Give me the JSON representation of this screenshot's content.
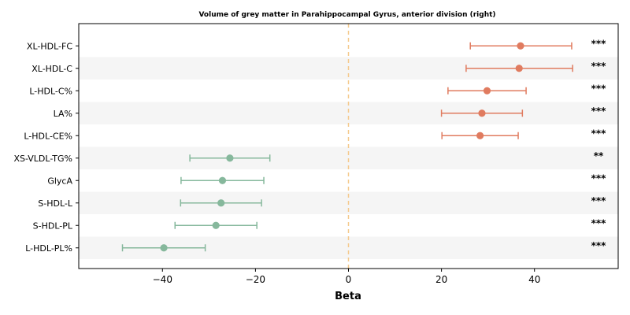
{
  "chart_data": {
    "type": "forest",
    "title": "Volume of grey matter in Parahippocampal Gyrus, anterior division (right)",
    "xlabel": "Beta",
    "xlim": [
      -58,
      58
    ],
    "xticks": [
      -40,
      -20,
      0,
      20,
      40
    ],
    "xtick_labels": [
      "−40",
      "−20",
      "0",
      "20",
      "40"
    ],
    "reference_line": 0,
    "colors": {
      "positive": "#e07b5f",
      "negative": "#86b89c",
      "reference": "#f5c98c",
      "band": "#f5f5f5"
    },
    "rows": [
      {
        "label": "XL-HDL-FC",
        "beta": 37.0,
        "lower": 26.2,
        "upper": 48.0,
        "sig": "***"
      },
      {
        "label": "XL-HDL-C",
        "beta": 36.7,
        "lower": 25.3,
        "upper": 48.2,
        "sig": "***"
      },
      {
        "label": "L-HDL-C%",
        "beta": 29.8,
        "lower": 21.4,
        "upper": 38.2,
        "sig": "***"
      },
      {
        "label": "LA%",
        "beta": 28.7,
        "lower": 20.0,
        "upper": 37.4,
        "sig": "***"
      },
      {
        "label": "L-HDL-CE%",
        "beta": 28.3,
        "lower": 20.1,
        "upper": 36.5,
        "sig": "***"
      },
      {
        "label": "XS-VLDL-TG%",
        "beta": -25.5,
        "lower": -34.1,
        "upper": -16.9,
        "sig": "**"
      },
      {
        "label": "GlycA",
        "beta": -27.1,
        "lower": -36.0,
        "upper": -18.2,
        "sig": "***"
      },
      {
        "label": "S-HDL-L",
        "beta": -27.4,
        "lower": -36.1,
        "upper": -18.7,
        "sig": "***"
      },
      {
        "label": "S-HDL-PL",
        "beta": -28.5,
        "lower": -37.3,
        "upper": -19.7,
        "sig": "***"
      },
      {
        "label": "L-HDL-PL%",
        "beta": -39.7,
        "lower": -48.6,
        "upper": -30.8,
        "sig": "***"
      }
    ]
  }
}
